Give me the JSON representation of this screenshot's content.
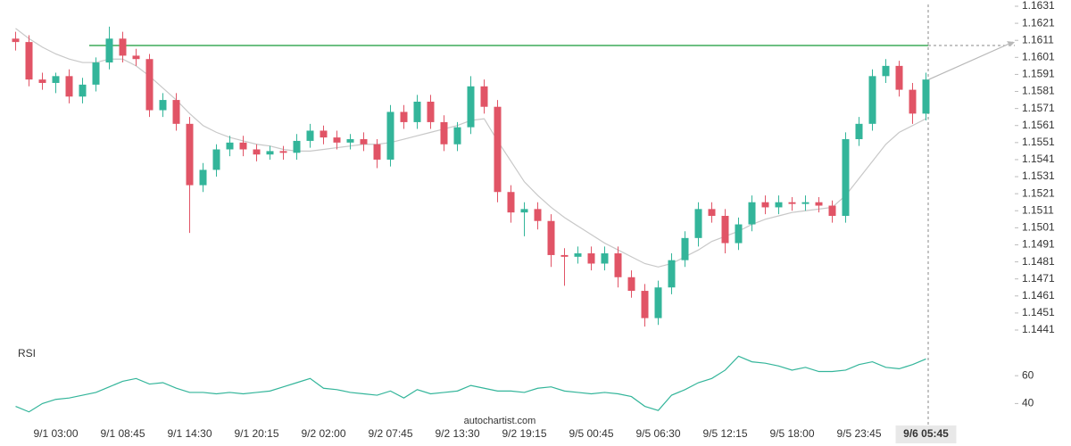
{
  "chart_data": [
    {
      "type": "candlestick",
      "categories": [
        null,
        null,
        null,
        "9/1 03:00",
        null,
        null,
        null,
        null,
        "9/1 08:45",
        null,
        null,
        null,
        null,
        "9/1 14:30",
        null,
        null,
        null,
        null,
        "9/1 20:15",
        null,
        null,
        null,
        null,
        "9/2 02:00",
        null,
        null,
        null,
        null,
        "9/2 07:45",
        null,
        null,
        null,
        null,
        "9/2 13:30",
        null,
        null,
        null,
        null,
        "9/2 19:15",
        null,
        null,
        null,
        null,
        "9/5 00:45",
        null,
        null,
        null,
        null,
        "9/5 06:30",
        null,
        null,
        null,
        null,
        "9/5 12:15",
        null,
        null,
        null,
        null,
        "9/5 18:00",
        null,
        null,
        null,
        null,
        "9/5 23:45",
        null,
        null,
        null,
        null,
        "9/6 05:45"
      ],
      "open": [
        1.1612,
        1.161,
        1.1588,
        1.1586,
        1.159,
        1.1578,
        1.1585,
        1.1598,
        1.1612,
        1.1602,
        1.16,
        1.157,
        1.1576,
        1.1562,
        1.1526,
        1.1535,
        1.1547,
        1.1551,
        1.1547,
        1.1544,
        1.1546,
        1.1545,
        1.1552,
        1.1558,
        1.1554,
        1.1551,
        1.1553,
        1.155,
        1.1541,
        1.1569,
        1.1563,
        1.1575,
        1.1563,
        1.155,
        1.156,
        1.1584,
        1.1572,
        1.1522,
        1.151,
        1.1512,
        1.1505,
        1.1485,
        1.1484,
        1.1486,
        1.148,
        1.1486,
        1.1472,
        1.1464,
        1.1448,
        1.1466,
        1.1482,
        1.1495,
        1.1512,
        1.1508,
        1.1492,
        1.1503,
        1.1516,
        1.1513,
        1.1516,
        1.1515,
        1.1516,
        1.1514,
        1.1508,
        1.1553,
        1.1562,
        1.159,
        1.1596,
        1.1582,
        1.1568
      ],
      "high": [
        1.1616,
        1.1614,
        1.1592,
        1.1592,
        1.1594,
        1.1589,
        1.1601,
        1.1619,
        1.1616,
        1.1606,
        1.1603,
        1.158,
        1.158,
        1.1566,
        1.1539,
        1.155,
        1.1555,
        1.1555,
        1.155,
        1.1549,
        1.1549,
        1.1556,
        1.1562,
        1.1561,
        1.1558,
        1.1556,
        1.1557,
        1.1553,
        1.1573,
        1.1573,
        1.1579,
        1.1579,
        1.1567,
        1.1563,
        1.159,
        1.1588,
        1.1576,
        1.1526,
        1.1516,
        1.1516,
        1.1509,
        1.1489,
        1.149,
        1.149,
        1.149,
        1.149,
        1.1476,
        1.1468,
        1.147,
        1.1486,
        1.1499,
        1.1516,
        1.1516,
        1.1512,
        1.1507,
        1.152,
        1.152,
        1.152,
        1.1519,
        1.152,
        1.1519,
        1.1517,
        1.1557,
        1.1566,
        1.1594,
        1.16,
        1.1599,
        1.1586,
        1.1592
      ],
      "low": [
        1.1605,
        1.1584,
        1.1582,
        1.158,
        1.1574,
        1.1574,
        1.1581,
        1.1594,
        1.1598,
        1.1596,
        1.1566,
        1.1566,
        1.1558,
        1.1498,
        1.1522,
        1.1531,
        1.1543,
        1.1543,
        1.154,
        1.1541,
        1.1541,
        1.1541,
        1.1548,
        1.155,
        1.1547,
        1.1547,
        1.1546,
        1.1536,
        1.1537,
        1.1559,
        1.1559,
        1.1559,
        1.1546,
        1.1546,
        1.1556,
        1.1568,
        1.1516,
        1.1504,
        1.1496,
        1.15,
        1.1478,
        1.1467,
        1.148,
        1.1476,
        1.1476,
        1.1466,
        1.146,
        1.1443,
        1.1444,
        1.1462,
        1.1478,
        1.149,
        1.1504,
        1.1486,
        1.1488,
        1.1499,
        1.1509,
        1.1509,
        1.1511,
        1.1511,
        1.151,
        1.1504,
        1.1504,
        1.1549,
        1.1558,
        1.1586,
        1.1578,
        1.1562,
        1.1564
      ],
      "close": [
        1.161,
        1.1588,
        1.1586,
        1.159,
        1.1578,
        1.1585,
        1.1598,
        1.1612,
        1.1602,
        1.16,
        1.157,
        1.1576,
        1.1562,
        1.1526,
        1.1535,
        1.1547,
        1.1551,
        1.1547,
        1.1544,
        1.1546,
        1.1545,
        1.1552,
        1.1558,
        1.1554,
        1.1551,
        1.1553,
        1.155,
        1.1541,
        1.1569,
        1.1563,
        1.1575,
        1.1563,
        1.155,
        1.156,
        1.1584,
        1.1572,
        1.1522,
        1.151,
        1.1512,
        1.1505,
        1.1485,
        1.1484,
        1.1486,
        1.148,
        1.1486,
        1.1472,
        1.1464,
        1.1448,
        1.1466,
        1.1482,
        1.1495,
        1.1512,
        1.1508,
        1.1492,
        1.1503,
        1.1516,
        1.1513,
        1.1516,
        1.1515,
        1.1516,
        1.1514,
        1.1508,
        1.1553,
        1.1562,
        1.159,
        1.1596,
        1.1582,
        1.1568,
        1.1588
      ],
      "up_color": "#33b59a",
      "down_color": "#e15466",
      "ma": {
        "color": "#c8c8c8",
        "values": [
          1.1618,
          1.1612,
          1.1607,
          1.1603,
          1.16,
          1.1598,
          1.1598,
          1.16,
          1.16,
          1.1596,
          1.159,
          1.1583,
          1.1576,
          1.1568,
          1.1561,
          1.1557,
          1.1554,
          1.1552,
          1.155,
          1.1549,
          1.1547,
          1.1546,
          1.1546,
          1.1547,
          1.1548,
          1.1549,
          1.155,
          1.155,
          1.1551,
          1.1553,
          1.1555,
          1.1557,
          1.1559,
          1.1561,
          1.1564,
          1.1565,
          1.1552,
          1.154,
          1.1528,
          1.152,
          1.1513,
          1.1507,
          1.1502,
          1.1497,
          1.1492,
          1.1488,
          1.1484,
          1.148,
          1.1478,
          1.148,
          1.1484,
          1.1488,
          1.1493,
          1.1496,
          1.1499,
          1.1503,
          1.1506,
          1.1508,
          1.151,
          1.1511,
          1.1512,
          1.1513,
          1.152,
          1.153,
          1.154,
          1.155,
          1.1557,
          1.1561,
          1.1565
        ]
      },
      "resistance": {
        "value": 1.1608,
        "color": "#6dbf82"
      },
      "forecast": {
        "value": 1.161,
        "color": "#b8b8b8"
      },
      "ylim": [
        1.1441,
        1.1631
      ],
      "yticks": [
        1.1631,
        1.1621,
        1.1611,
        1.1601,
        1.1591,
        1.1581,
        1.1571,
        1.1561,
        1.1551,
        1.1541,
        1.1531,
        1.1521,
        1.1511,
        1.1501,
        1.1491,
        1.1481,
        1.1471,
        1.1461,
        1.1451,
        1.1441
      ],
      "watermark": "autochartist.com"
    },
    {
      "type": "line",
      "title": "RSI",
      "color": "#33b59a",
      "values": [
        38,
        34,
        40,
        43,
        44,
        46,
        48,
        52,
        56,
        58,
        54,
        55,
        51,
        48,
        48,
        47,
        48,
        47,
        48,
        49,
        52,
        55,
        58,
        51,
        50,
        48,
        47,
        46,
        49,
        44,
        50,
        47,
        48,
        49,
        53,
        51,
        49,
        49,
        48,
        51,
        52,
        49,
        48,
        47,
        48,
        47,
        45,
        38,
        35,
        46,
        50,
        55,
        58,
        64,
        74,
        70,
        69,
        67,
        64,
        66,
        63,
        63,
        64,
        68,
        70,
        66,
        65,
        68,
        72
      ],
      "ylim": [
        30,
        80
      ],
      "yticks": [
        40,
        60
      ]
    }
  ]
}
